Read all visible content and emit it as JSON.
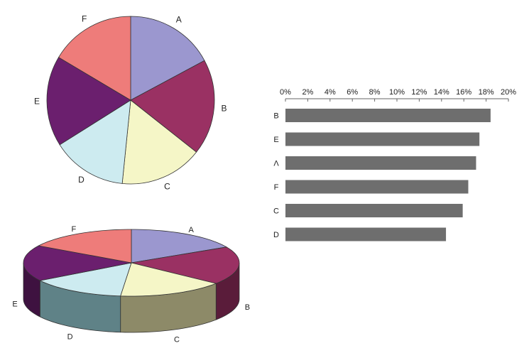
{
  "chart_data": [
    {
      "type": "pie",
      "title": "",
      "categories": [
        "A",
        "B",
        "C",
        "D",
        "E",
        "F"
      ],
      "values": [
        17.1,
        18.4,
        15.9,
        14.4,
        17.4,
        16.4
      ],
      "colors": [
        "#9b97cf",
        "#9a3163",
        "#f5f6c7",
        "#cdebf0",
        "#6b1f6e",
        "#ee7c7a"
      ]
    },
    {
      "type": "pie",
      "variant": "3d",
      "title": "",
      "categories": [
        "A",
        "B",
        "C",
        "D",
        "E",
        "F"
      ],
      "values": [
        17.1,
        18.4,
        15.9,
        14.4,
        17.4,
        16.4
      ],
      "colors": [
        "#9b97cf",
        "#9a3163",
        "#f5f6c7",
        "#cdebf0",
        "#6b1f6e",
        "#ee7c7a"
      ],
      "side_colors": [
        "#6e6b96",
        "#5a1c3a",
        "#8d8a68",
        "#5f8287",
        "#3e1240",
        "#a8514f"
      ]
    },
    {
      "type": "bar",
      "orientation": "horizontal",
      "title": "",
      "categories": [
        "B",
        "E",
        "A",
        "F",
        "C",
        "D"
      ],
      "category_labels": [
        "B",
        "E",
        "Λ",
        "F",
        "C",
        "D"
      ],
      "values": [
        18.4,
        17.4,
        17.1,
        16.4,
        15.9,
        14.4
      ],
      "xlim": [
        0,
        20
      ],
      "ticks": [
        0,
        2,
        4,
        6,
        8,
        10,
        12,
        14,
        16,
        18,
        20
      ],
      "tick_labels": [
        "0%",
        "2%",
        "4%",
        "6%",
        "8%",
        "10%",
        "12%",
        "14%",
        "16%",
        "18%",
        "20%"
      ],
      "axis_position": "top",
      "bar_color": "#6e6e6e",
      "grid": false,
      "legend": "none"
    }
  ]
}
